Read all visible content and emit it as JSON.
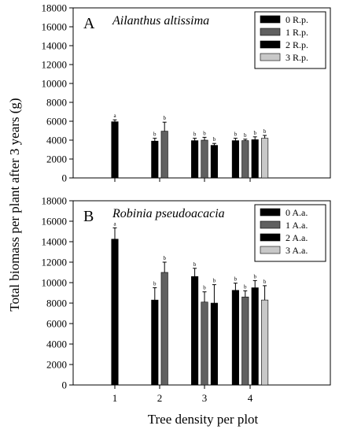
{
  "figure": {
    "shared_ylabel": "Total biomass per plant after 3 years (g)",
    "shared_xlabel": "Tree density per plot"
  },
  "chart_data": [
    {
      "type": "bar",
      "panel_letter": "A",
      "title": "Ailanthus altissima",
      "x_ticks": [
        "1",
        "2",
        "3",
        "4"
      ],
      "ylim": [
        0,
        18000
      ],
      "y_ticks": [
        "0",
        "2000",
        "4000",
        "6000",
        "8000",
        "10000",
        "12000",
        "14000",
        "16000",
        "18000"
      ],
      "legend_position": "top-right",
      "series": [
        {
          "name": "0 R.p.",
          "color": "#000000"
        },
        {
          "name": "1 R.p.",
          "color": "#606060"
        },
        {
          "name": "2 R.p.",
          "color": "#000000"
        },
        {
          "name": "3 R.p.",
          "color": "#c8c8c8"
        }
      ],
      "groups": [
        {
          "x": "1",
          "bars": [
            {
              "series": 0,
              "value": 5950,
              "err": 200,
              "letter": "a"
            }
          ]
        },
        {
          "x": "2",
          "bars": [
            {
              "series": 0,
              "value": 3900,
              "err": 300,
              "letter": "b"
            },
            {
              "series": 1,
              "value": 4950,
              "err": 950,
              "letter": "b"
            }
          ]
        },
        {
          "x": "3",
          "bars": [
            {
              "series": 0,
              "value": 3950,
              "err": 250,
              "letter": "b"
            },
            {
              "series": 1,
              "value": 4000,
              "err": 300,
              "letter": "b"
            },
            {
              "series": 2,
              "value": 3450,
              "err": 200,
              "letter": "b"
            }
          ]
        },
        {
          "x": "4",
          "bars": [
            {
              "series": 0,
              "value": 3950,
              "err": 250,
              "letter": "b"
            },
            {
              "series": 1,
              "value": 3950,
              "err": 150,
              "letter": "b"
            },
            {
              "series": 2,
              "value": 4050,
              "err": 300,
              "letter": "b"
            },
            {
              "series": 3,
              "value": 4200,
              "err": 300,
              "letter": "b"
            }
          ]
        }
      ]
    },
    {
      "type": "bar",
      "panel_letter": "B",
      "title": "Robinia pseudoacacia",
      "x_ticks": [
        "1",
        "2",
        "3",
        "4"
      ],
      "ylim": [
        0,
        18000
      ],
      "y_ticks": [
        "0",
        "2000",
        "4000",
        "6000",
        "8000",
        "10000",
        "12000",
        "14000",
        "16000",
        "18000"
      ],
      "legend_position": "top-right",
      "series": [
        {
          "name": "0 A.a.",
          "color": "#000000"
        },
        {
          "name": "1 A.a.",
          "color": "#606060"
        },
        {
          "name": "2 A.a.",
          "color": "#000000"
        },
        {
          "name": "3 A.a.",
          "color": "#c8c8c8"
        }
      ],
      "groups": [
        {
          "x": "1",
          "bars": [
            {
              "series": 0,
              "value": 14250,
              "err": 1100,
              "letter": "a"
            }
          ]
        },
        {
          "x": "2",
          "bars": [
            {
              "series": 0,
              "value": 8300,
              "err": 1200,
              "letter": "b"
            },
            {
              "series": 1,
              "value": 11000,
              "err": 1000,
              "letter": "b"
            }
          ]
        },
        {
          "x": "3",
          "bars": [
            {
              "series": 0,
              "value": 10600,
              "err": 800,
              "letter": "b"
            },
            {
              "series": 1,
              "value": 8100,
              "err": 1000,
              "letter": "b"
            },
            {
              "series": 2,
              "value": 8000,
              "err": 1800,
              "letter": "b"
            }
          ]
        },
        {
          "x": "4",
          "bars": [
            {
              "series": 0,
              "value": 9250,
              "err": 700,
              "letter": "b"
            },
            {
              "series": 1,
              "value": 8600,
              "err": 600,
              "letter": "b"
            },
            {
              "series": 2,
              "value": 9500,
              "err": 700,
              "letter": "b"
            },
            {
              "series": 3,
              "value": 8300,
              "err": 1400,
              "letter": "b"
            }
          ]
        }
      ]
    }
  ]
}
